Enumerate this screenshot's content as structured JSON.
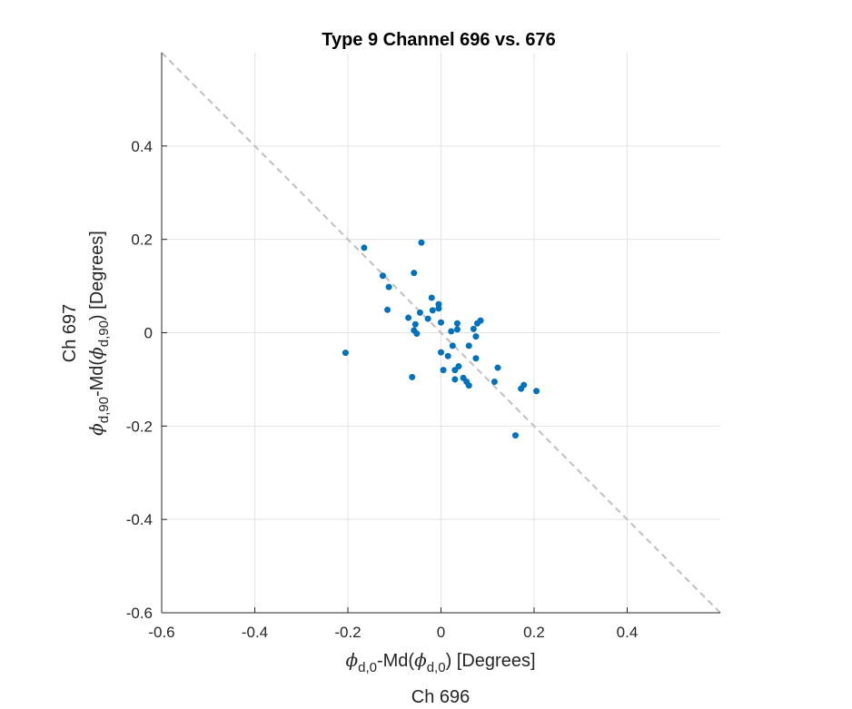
{
  "chart_data": {
    "type": "scatter",
    "title": "Type 9 Channel 696 vs. 676",
    "xlabel": {
      "expr": [
        {
          "t": "ϕ",
          "phi": true
        },
        {
          "t": "d,0",
          "sub": true
        },
        {
          "t": "-Md("
        },
        {
          "t": "ϕ",
          "phi": true
        },
        {
          "t": "d,0",
          "sub": true
        },
        {
          "t": ") [Degrees]"
        }
      ],
      "channel": "Ch 696"
    },
    "ylabel": {
      "channel": "Ch 697",
      "expr": [
        {
          "t": "ϕ",
          "phi": true
        },
        {
          "t": "d,90",
          "sub": true
        },
        {
          "t": "-Md("
        },
        {
          "t": "ϕ",
          "phi": true
        },
        {
          "t": "d,90",
          "sub": true
        },
        {
          "t": ") [Degrees]"
        }
      ]
    },
    "xlim": [
      -0.6,
      0.6
    ],
    "ylim": [
      -0.6,
      0.6
    ],
    "xticks": [
      -0.6,
      -0.4,
      -0.2,
      0,
      0.2,
      0.4
    ],
    "yticks": [
      -0.6,
      -0.4,
      -0.2,
      0,
      0.2,
      0.4
    ],
    "xtick_labels": [
      "-0.6",
      "-0.4",
      "-0.2",
      "0",
      "0.2",
      "0.4"
    ],
    "ytick_labels": [
      "-0.6",
      "-0.4",
      "-0.2",
      "0",
      "0.2",
      "0.4"
    ],
    "grid": true,
    "colors": {
      "points": "#0072BD",
      "reference_line": "#BFBFBF",
      "grid": "#E3E3E3",
      "axis": "#262626"
    },
    "reference_line": {
      "style": "dashed",
      "points": [
        [
          -0.6,
          0.6
        ],
        [
          0.6,
          -0.6
        ]
      ]
    },
    "series": [
      {
        "points": [
          [
            -0.165,
            0.182
          ],
          [
            -0.042,
            0.193
          ],
          [
            -0.125,
            0.122
          ],
          [
            -0.058,
            0.128
          ],
          [
            -0.112,
            0.098
          ],
          [
            -0.115,
            0.049
          ],
          [
            -0.205,
            -0.043
          ],
          [
            -0.062,
            -0.095
          ],
          [
            -0.02,
            0.075
          ],
          [
            -0.005,
            0.061
          ],
          [
            -0.018,
            0.048
          ],
          [
            -0.005,
            0.052
          ],
          [
            -0.045,
            0.043
          ],
          [
            -0.07,
            0.032
          ],
          [
            -0.028,
            0.03
          ],
          [
            -0.055,
            0.018
          ],
          [
            -0.058,
            0.005
          ],
          [
            -0.052,
            -0.002
          ],
          [
            0.0,
            0.022
          ],
          [
            0.035,
            0.02
          ],
          [
            0.085,
            0.026
          ],
          [
            0.078,
            0.02
          ],
          [
            0.07,
            0.008
          ],
          [
            0.035,
            0.007
          ],
          [
            0.022,
            0.003
          ],
          [
            0.075,
            -0.008
          ],
          [
            0.06,
            -0.028
          ],
          [
            0.025,
            -0.028
          ],
          [
            0.0,
            -0.042
          ],
          [
            0.015,
            -0.05
          ],
          [
            0.075,
            -0.055
          ],
          [
            0.005,
            -0.08
          ],
          [
            0.038,
            -0.072
          ],
          [
            0.03,
            -0.08
          ],
          [
            0.122,
            -0.075
          ],
          [
            0.03,
            -0.1
          ],
          [
            0.048,
            -0.097
          ],
          [
            0.055,
            -0.105
          ],
          [
            0.06,
            -0.113
          ],
          [
            0.115,
            -0.105
          ],
          [
            0.178,
            -0.112
          ],
          [
            0.172,
            -0.12
          ],
          [
            0.205,
            -0.125
          ],
          [
            0.16,
            -0.22
          ]
        ]
      }
    ]
  }
}
